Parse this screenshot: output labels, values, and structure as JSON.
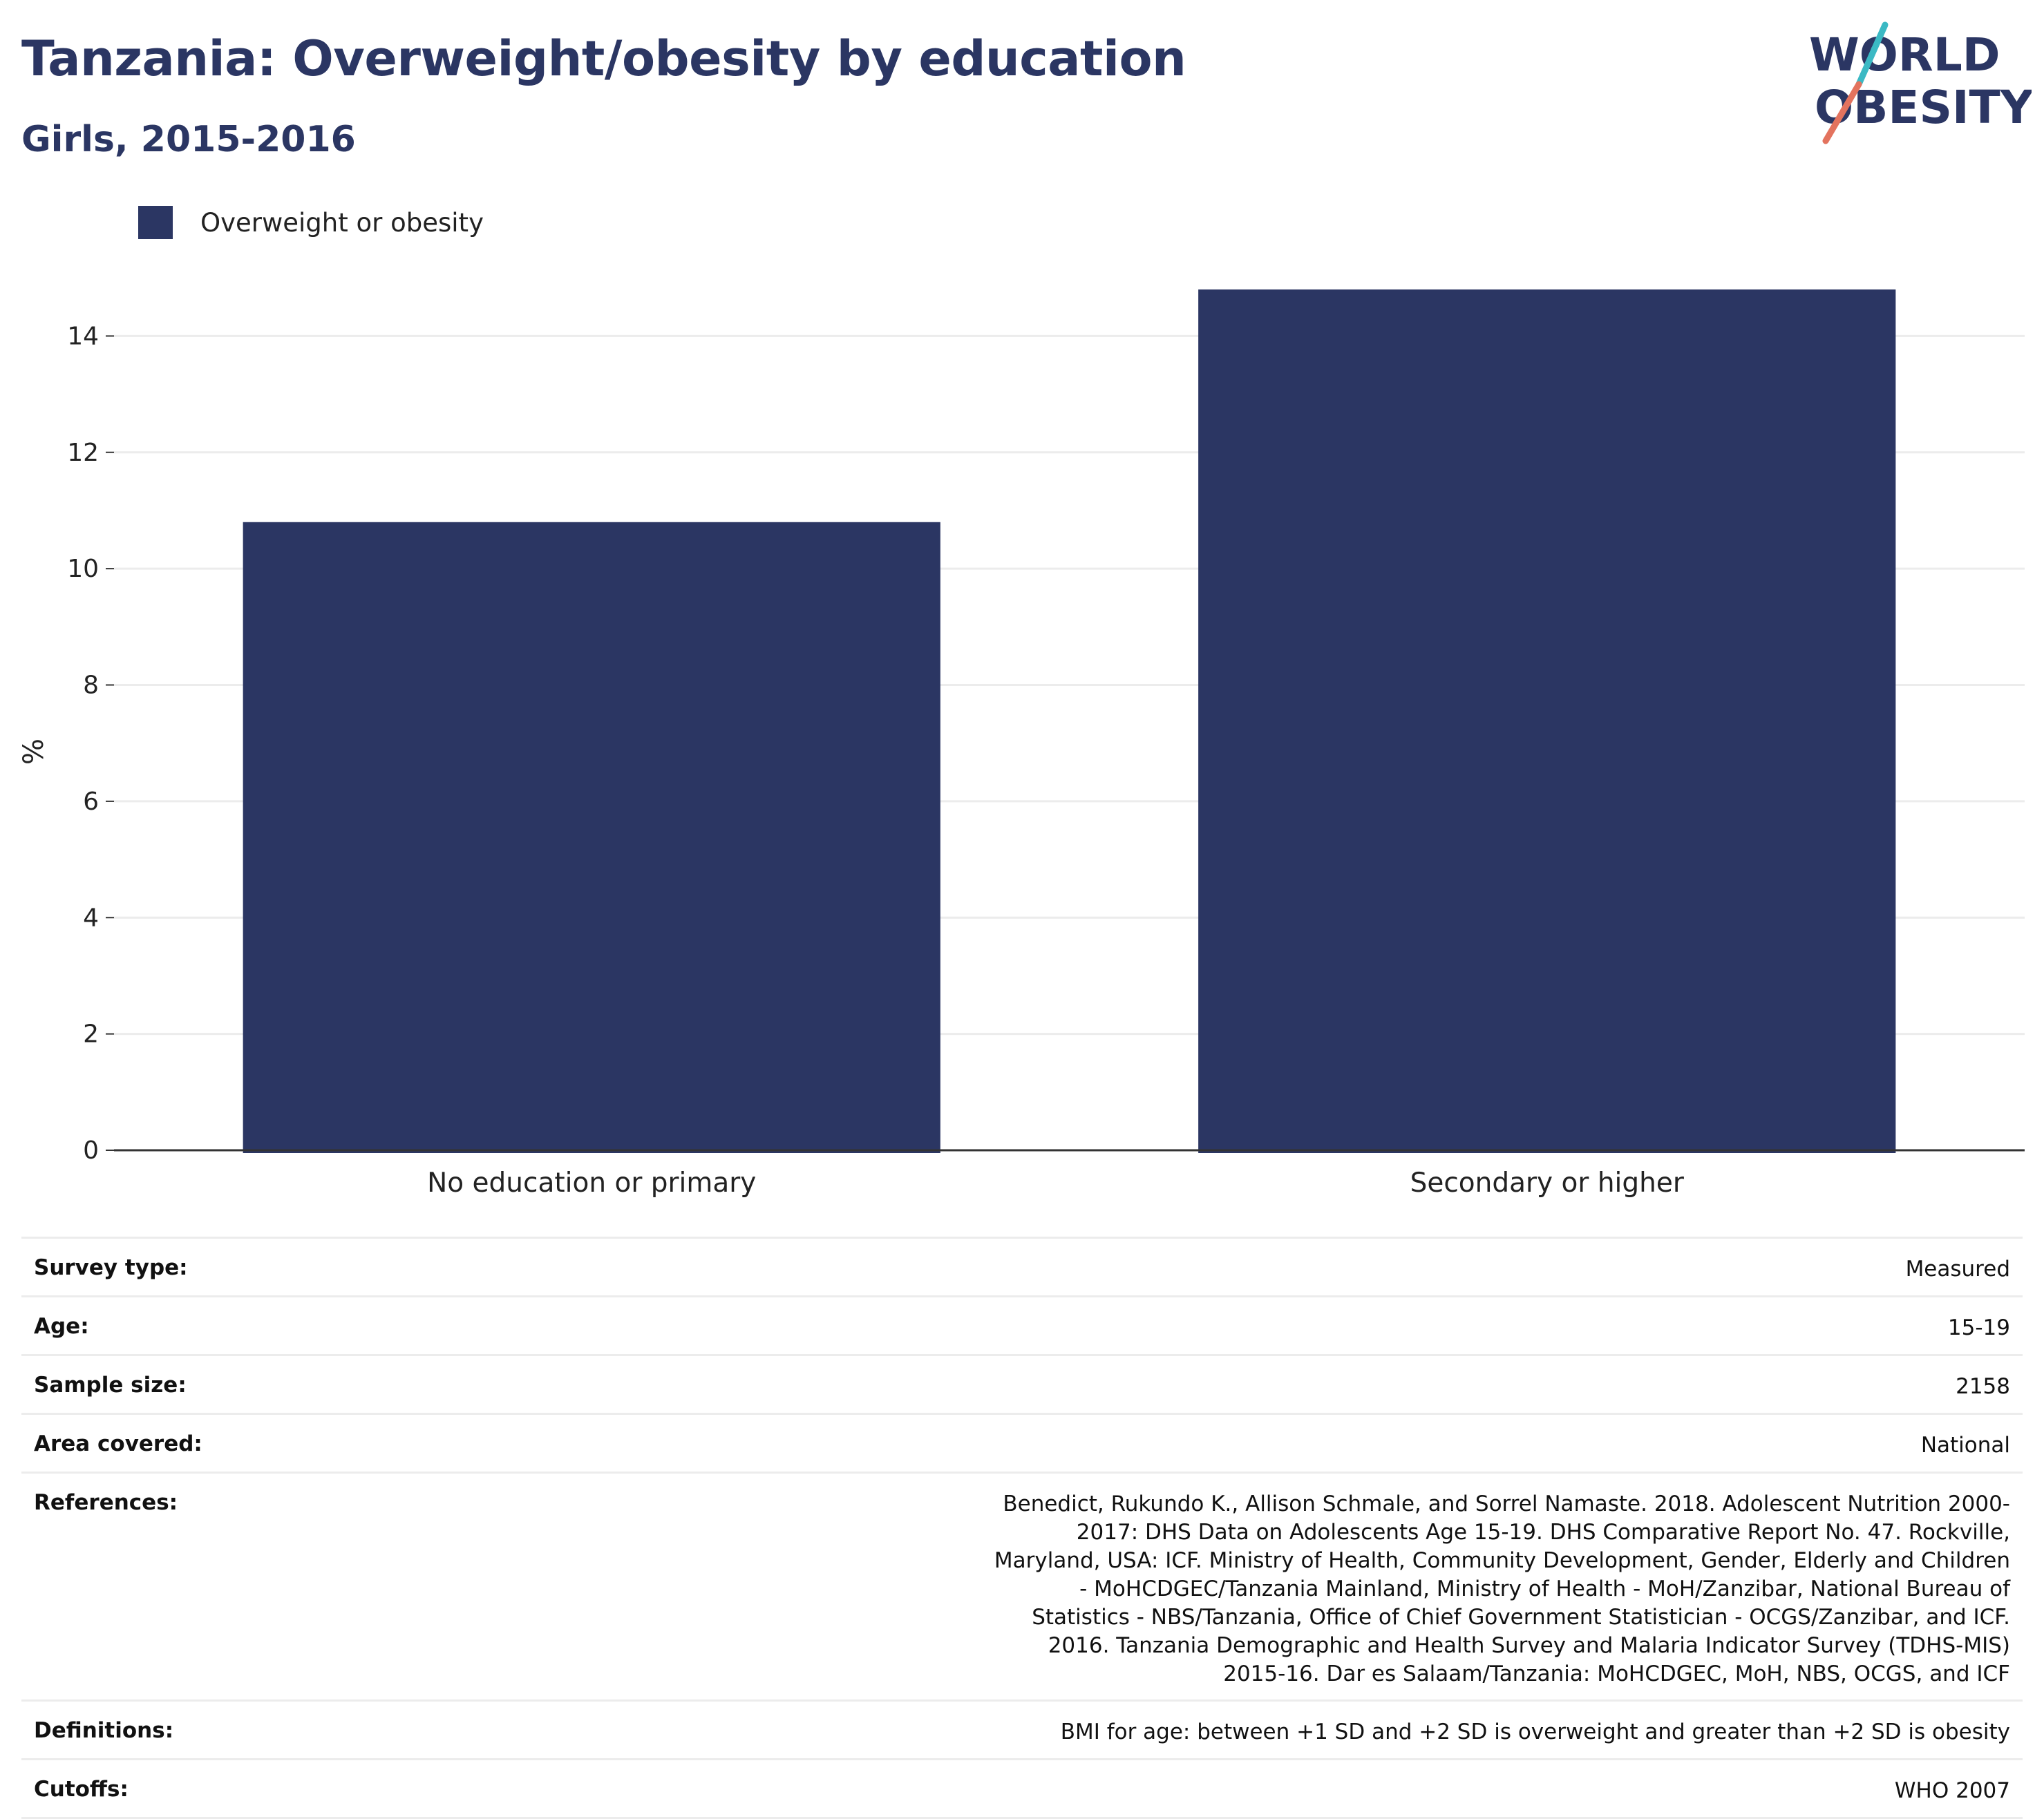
{
  "header": {
    "title": "Tanzania: Overweight/obesity by education",
    "subtitle": "Girls, 2015-2016"
  },
  "logo": {
    "line1": "WORLD",
    "line2": "OBESITY"
  },
  "colors": {
    "bar": "#2b3663",
    "grid": "#ececec",
    "axis": "#333333",
    "logo_teal": "#3bb9c4",
    "logo_coral": "#e3735e"
  },
  "chart_data": {
    "type": "bar",
    "title": "Tanzania: Overweight/obesity by education",
    "subtitle": "Girls, 2015-2016",
    "categories": [
      "No education or primary",
      "Secondary or higher"
    ],
    "series": [
      {
        "name": "Overweight or obesity",
        "values": [
          10.8,
          14.8
        ]
      }
    ],
    "xlabel": "",
    "ylabel": "%",
    "ylim": [
      0,
      16
    ],
    "yticks": [
      0,
      2,
      4,
      6,
      8,
      10,
      12,
      14
    ],
    "grid": true,
    "legend_position": "top-left"
  },
  "meta": {
    "rows": [
      {
        "label": "Survey type:",
        "value": "Measured"
      },
      {
        "label": "Age:",
        "value": "15-19"
      },
      {
        "label": "Sample size:",
        "value": "2158"
      },
      {
        "label": "Area covered:",
        "value": "National"
      },
      {
        "label": "References:",
        "value": "Benedict, Rukundo K., Allison Schmale, and Sorrel Namaste. 2018. Adolescent Nutrition 2000-2017: DHS Data on Adolescents Age 15-19. DHS Comparative Report No. 47. Rockville, Maryland, USA: ICF. Ministry of Health, Community Development, Gender, Elderly and Children - MoHCDGEC/Tanzania Mainland, Ministry of Health - MoH/Zanzibar, National Bureau of Statistics - NBS/Tanzania, Office of Chief Government Statistician - OCGS/Zanzibar, and ICF. 2016. Tanzania Demographic and Health Survey and Malaria Indicator Survey (TDHS-MIS) 2015-16. Dar es Salaam/Tanzania: MoHCDGEC, MoH, NBS, OCGS, and ICF"
      },
      {
        "label": "Definitions:",
        "value": "BMI for age: between +1 SD and +2 SD is overweight and greater than +2 SD is obesity"
      },
      {
        "label": "Cutoffs:",
        "value": "WHO 2007"
      }
    ]
  }
}
